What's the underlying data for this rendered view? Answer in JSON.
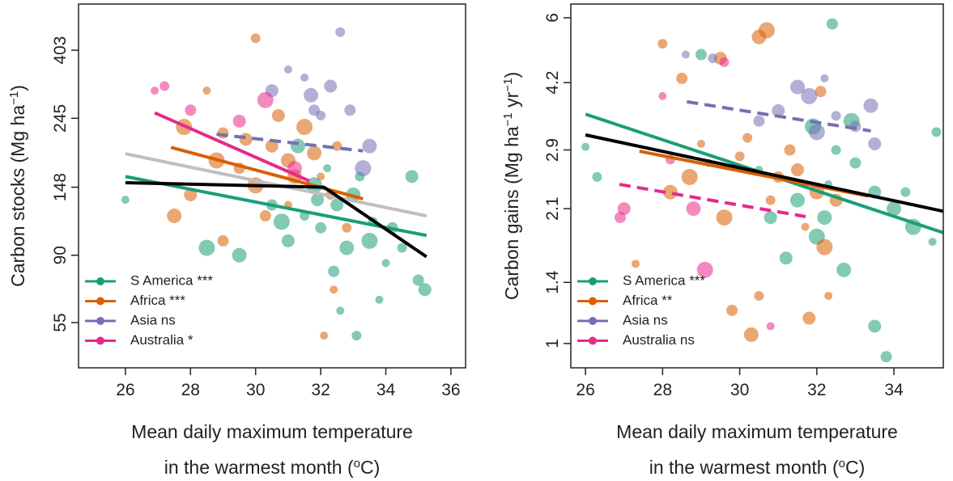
{
  "chart_data": [
    {
      "type": "scatter",
      "log_y": true,
      "legend": "lower left",
      "xlim": [
        24.56,
        36.45
      ],
      "ylim": [
        39.5,
        565
      ],
      "xticks": [
        26,
        28,
        30,
        32,
        34,
        36
      ],
      "yticks": [
        55,
        90,
        148,
        245,
        403
      ],
      "x_label": [
        "Mean daily maximum temperature",
        [
          {
            "text": "in the warmest month (",
            "superscript": false
          },
          {
            "text": "o",
            "superscript": true
          },
          {
            "text": "C)",
            "superscript": false
          }
        ]
      ],
      "y_label": [
        {
          "text": "Carbon stocks (Mg ha",
          "superscript": false
        },
        {
          "text": "−1",
          "superscript": true
        },
        {
          "text": ")",
          "superscript": false
        }
      ],
      "series": [
        {
          "name": "S America ***",
          "color": "#1b9e77",
          "x": [
            26,
            31.5,
            32,
            32.5,
            33,
            33.5,
            34,
            34.5,
            35,
            35.2,
            32.8,
            31.8,
            32.2,
            33.2,
            30.5,
            31,
            29.5,
            28.5,
            33.8,
            33.1,
            32.4,
            34.8,
            31.3,
            30.8,
            32.6,
            33.6,
            34.2,
            31.9
          ],
          "y": [
            135,
            120,
            110,
            130,
            140,
            100,
            85,
            95,
            75,
            70,
            95,
            150,
            170,
            160,
            130,
            100,
            90,
            95,
            65,
            50,
            80,
            160,
            200,
            115,
            60,
            115,
            110,
            135
          ],
          "fit": {
            "x": [
              26,
              35.25
            ],
            "y": [
              160,
              104
            ],
            "dashed": false
          }
        },
        {
          "name": "Africa ***",
          "color": "#d95f02",
          "x": [
            28.5,
            30,
            29,
            30.5,
            31,
            31.5,
            32,
            32.3,
            29.5,
            28,
            27.5,
            30,
            31,
            32.5,
            29,
            30.7,
            31.8,
            28.8,
            32.1,
            32.8,
            30.3,
            29.7,
            31.2,
            27.8,
            32.4
          ],
          "y": [
            300,
            440,
            220,
            200,
            180,
            230,
            160,
            140,
            170,
            140,
            120,
            150,
            130,
            200,
            100,
            250,
            190,
            180,
            50,
            110,
            120,
            210,
            160,
            230,
            70
          ],
          "fit": {
            "x": [
              27.4,
              33.3
            ],
            "y": [
              198,
              136
            ],
            "dashed": false
          }
        },
        {
          "name": "Asia ns",
          "color": "#7570b3",
          "x": [
            31.5,
            32,
            31.8,
            32.3,
            33.5,
            33.3,
            31,
            32.6,
            32.9,
            30.5,
            31.7
          ],
          "y": [
            330,
            250,
            260,
            310,
            200,
            170,
            350,
            460,
            260,
            300,
            290
          ],
          "fit": {
            "x": [
              28.8,
              33.3
            ],
            "y": [
              218,
              193
            ],
            "dashed": true
          }
        },
        {
          "name": "Australia *",
          "color": "#e7298a",
          "x": [
            26.9,
            27.2,
            28,
            29.5,
            31.2,
            30.3
          ],
          "y": [
            300,
            310,
            260,
            240,
            170,
            280
          ],
          "fit": {
            "x": [
              26.9,
              31.65
            ],
            "y": [
              255,
              155
            ],
            "dashed": false
          }
        }
      ],
      "overall_fits": [
        {
          "color": "#bfbfbf",
          "x": [
            26,
            35.25
          ],
          "y": [
            189,
            120
          ]
        },
        {
          "color": "#000000",
          "x": [
            26,
            32.1,
            35.25
          ],
          "y": [
            153,
            148,
            89
          ]
        }
      ]
    },
    {
      "type": "scatter",
      "log_y": true,
      "legend": "lower left",
      "xlim": [
        25.62,
        35.28
      ],
      "ylim": [
        0.875,
        6.47
      ],
      "xticks": [
        26,
        28,
        30,
        32,
        34
      ],
      "yticks": [
        1,
        1.4,
        2.1,
        2.9,
        4.2,
        6
      ],
      "x_label": [
        "Mean daily maximum temperature",
        [
          {
            "text": "in the warmest month (",
            "superscript": false
          },
          {
            "text": "o",
            "superscript": true
          },
          {
            "text": "C)",
            "superscript": false
          }
        ]
      ],
      "y_label": [
        {
          "text": "Carbon gains (Mg ha",
          "superscript": false
        },
        {
          "text": "−1",
          "superscript": true
        },
        {
          "text": " yr",
          "superscript": false
        },
        {
          "text": "−1",
          "superscript": true
        },
        {
          "text": ")",
          "superscript": false
        }
      ],
      "series": [
        {
          "name": "S America ***",
          "color": "#1b9e77",
          "x": [
            26,
            26.3,
            29,
            30.8,
            31.5,
            32,
            32.3,
            32.5,
            33,
            33.5,
            34,
            34.5,
            35,
            35.1,
            32.4,
            33.5,
            32.7,
            31.9,
            30.5,
            34.3,
            33.8,
            31.2,
            32.2,
            32.9
          ],
          "y": [
            2.95,
            2.5,
            4.9,
            2.0,
            2.2,
            1.8,
            2.4,
            2.9,
            2.7,
            2.3,
            2.1,
            1.9,
            1.75,
            3.2,
            5.8,
            1.1,
            1.5,
            3.3,
            2.6,
            2.3,
            0.93,
            1.6,
            2.0,
            3.4
          ],
          "fit": {
            "x": [
              26,
              35.28
            ],
            "y": [
              3.53,
              1.84
            ],
            "dashed": false
          }
        },
        {
          "name": "Africa **",
          "color": "#d95f02",
          "x": [
            27.3,
            28,
            28.5,
            29.5,
            30.5,
            30.7,
            29,
            30,
            31,
            31.5,
            32,
            32.2,
            32.3,
            30.5,
            29.8,
            31.8,
            30.3,
            28.7,
            29.2,
            30.2,
            31.3,
            32.5,
            28.2,
            29.6,
            31.7,
            30.8,
            32.1
          ],
          "y": [
            1.55,
            5.2,
            4.3,
            4.8,
            5.4,
            5.6,
            3.0,
            2.8,
            2.5,
            2.6,
            2.3,
            1.7,
            1.3,
            1.3,
            1.2,
            1.15,
            1.05,
            2.5,
            2.7,
            3.1,
            2.9,
            2.2,
            2.3,
            2.0,
            1.9,
            2.2,
            4.0
          ],
          "fit": {
            "x": [
              27.4,
              33.33
            ],
            "y": [
              2.88,
              2.25
            ],
            "dashed": false
          }
        },
        {
          "name": "Asia ns",
          "color": "#7570b3",
          "x": [
            28.6,
            29.3,
            30.5,
            31,
            31.5,
            31.8,
            32.2,
            32.5,
            33,
            33.5,
            33.4,
            32
          ],
          "y": [
            4.9,
            4.8,
            3.4,
            3.6,
            4.1,
            3.9,
            4.3,
            3.5,
            3.3,
            3.0,
            3.7,
            3.2
          ],
          "fit": {
            "x": [
              28.63,
              33.4
            ],
            "y": [
              3.78,
              3.22
            ],
            "dashed": true
          }
        },
        {
          "name": "Australia ns",
          "color": "#e7298a",
          "x": [
            28,
            28.2,
            26.9,
            27,
            28.8,
            29.1,
            30.8,
            29.6
          ],
          "y": [
            3.9,
            2.75,
            2.0,
            2.1,
            2.1,
            1.5,
            1.1,
            4.7
          ],
          "fit": {
            "x": [
              26.88,
              31.71
            ],
            "y": [
              2.4,
              2.01
            ],
            "dashed": true
          }
        }
      ],
      "overall_fits": [
        {
          "color": "#000000",
          "x": [
            26,
            35.28
          ],
          "y": [
            3.15,
            2.07
          ]
        }
      ]
    }
  ]
}
